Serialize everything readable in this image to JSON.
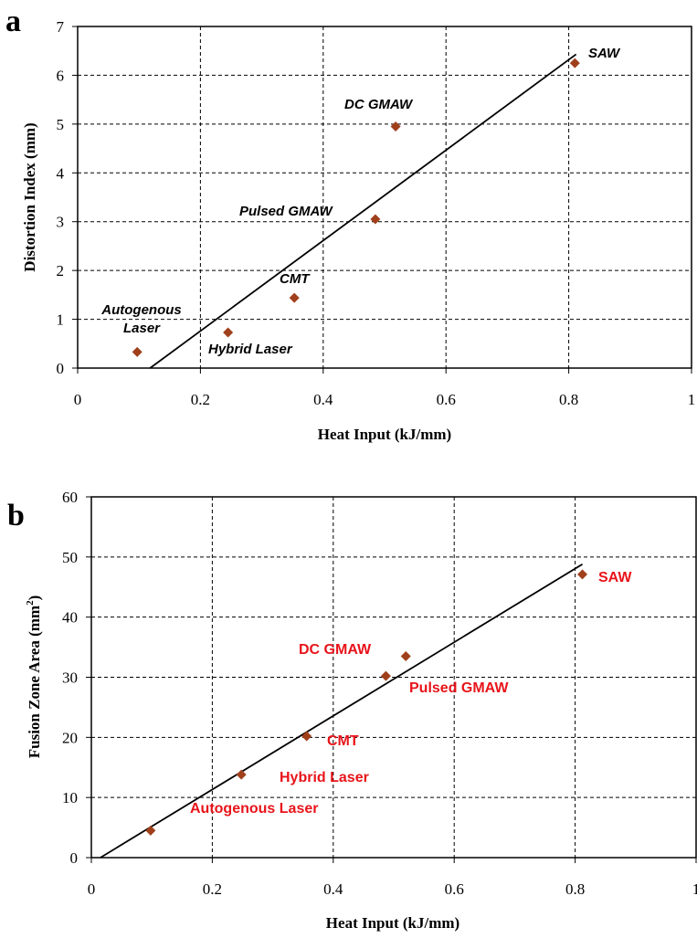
{
  "chart_data": [
    {
      "panel": "a",
      "type": "scatter",
      "xlabel": "Heat Input (kJ/mm)",
      "ylabel": "Distortion Index (mm)",
      "xlim": [
        0,
        1
      ],
      "ylim": [
        0,
        7
      ],
      "xticks": [
        "0",
        "0.2",
        "0.4",
        "0.6",
        "0.8",
        "1"
      ],
      "yticks": [
        "0",
        "1",
        "2",
        "3",
        "4",
        "5",
        "6",
        "7"
      ],
      "grid": true,
      "marker_color": "#a0401b",
      "label_color": "#000000",
      "points": [
        {
          "label": [
            "Autogenous",
            "Laser"
          ],
          "x": 0.097,
          "y": 0.33
        },
        {
          "label": [
            "Hybrid Laser"
          ],
          "x": 0.245,
          "y": 0.73
        },
        {
          "label": [
            "CMT"
          ],
          "x": 0.353,
          "y": 1.44
        },
        {
          "label": [
            "Pulsed GMAW"
          ],
          "x": 0.485,
          "y": 3.05
        },
        {
          "label": [
            "DC GMAW"
          ],
          "x": 0.518,
          "y": 4.95
        },
        {
          "label": [
            "SAW"
          ],
          "x": 0.81,
          "y": 6.25
        }
      ],
      "trendline": [
        {
          "x": 0.118,
          "y": 0.0
        },
        {
          "x": 0.812,
          "y": 6.43
        }
      ]
    },
    {
      "panel": "b",
      "type": "scatter",
      "xlabel": "Heat Input (kJ/mm)",
      "ylabel": "Fusion Zone Area (mm",
      "ylabel_sup": "2",
      "ylabel_tail": ")",
      "xlim": [
        0,
        1
      ],
      "ylim": [
        0,
        60
      ],
      "xticks": [
        "0",
        "0.2",
        "0.4",
        "0.6",
        "0.8",
        "1"
      ],
      "yticks": [
        "0",
        "10",
        "20",
        "30",
        "40",
        "50",
        "60"
      ],
      "grid": true,
      "marker_color": "#a0401b",
      "label_color": "#e8141a",
      "points": [
        {
          "label": [
            "Autogenous  Laser"
          ],
          "x": 0.098,
          "y": 4.5
        },
        {
          "label": [
            "Hybrid Laser"
          ],
          "x": 0.248,
          "y": 13.8
        },
        {
          "label": [
            "CMT"
          ],
          "x": 0.356,
          "y": 20.2
        },
        {
          "label": [
            "Pulsed GMAW"
          ],
          "x": 0.487,
          "y": 30.2
        },
        {
          "label": [
            "DC GMAW"
          ],
          "x": 0.52,
          "y": 33.5
        },
        {
          "label": [
            "SAW"
          ],
          "x": 0.812,
          "y": 47.1
        }
      ],
      "trendline": [
        {
          "x": 0.015,
          "y": 0.0
        },
        {
          "x": 0.812,
          "y": 48.8
        }
      ]
    }
  ]
}
